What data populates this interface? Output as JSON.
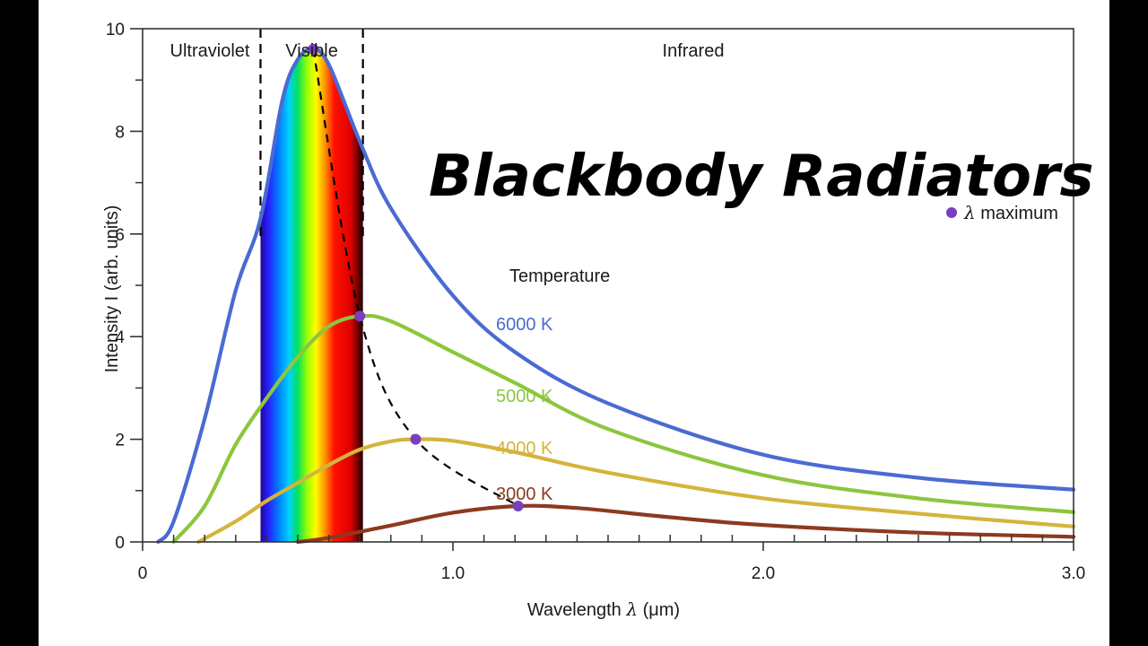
{
  "overlay_title": "Blackbody Radiators",
  "chart_data": {
    "type": "line",
    "xlabel_prefix": "Wavelength ",
    "xlabel_symbol": "λ",
    "xlabel_suffix": " (μm)",
    "ylabel": "Intensity I (arb. units)",
    "xlim": [
      0,
      3.0
    ],
    "ylim": [
      0,
      10
    ],
    "x_ticks": [
      {
        "value": 0,
        "label": "0"
      },
      {
        "value": 1.0,
        "label": "1.0"
      },
      {
        "value": 2.0,
        "label": "2.0"
      },
      {
        "value": 3.0,
        "label": "3.0"
      }
    ],
    "y_ticks": [
      {
        "value": 0,
        "label": "0"
      },
      {
        "value": 2,
        "label": "2"
      },
      {
        "value": 4,
        "label": "4"
      },
      {
        "value": 6,
        "label": "6"
      },
      {
        "value": 8,
        "label": "8"
      },
      {
        "value": 10,
        "label": "10"
      }
    ],
    "x_minor_step": 0.1,
    "y_minor_step": 1,
    "grid": false,
    "regions": [
      {
        "name": "Ultraviolet",
        "from": 0,
        "to": 0.38
      },
      {
        "name": "Visible",
        "from": 0.38,
        "to": 0.71
      },
      {
        "name": "Infrared",
        "from": 0.71,
        "to": 3.0
      }
    ],
    "region_boundaries": [
      0.38,
      0.71
    ],
    "legend_title": "Temperature",
    "marker_legend_symbol": "λ",
    "marker_legend_text": " maximum",
    "series": [
      {
        "name": "6000 K",
        "temperature": 6000,
        "color": "#4a6bd1",
        "peak": {
          "x": 0.55,
          "y": 9.6
        },
        "x": [
          0.05,
          0.1,
          0.2,
          0.3,
          0.38,
          0.45,
          0.5,
          0.55,
          0.6,
          0.7,
          0.8,
          1.0,
          1.2,
          1.5,
          2.0,
          2.5,
          3.0
        ],
        "y": [
          0.0,
          0.4,
          2.4,
          4.9,
          6.3,
          8.6,
          9.4,
          9.6,
          9.3,
          7.8,
          6.5,
          4.8,
          3.7,
          2.7,
          1.7,
          1.25,
          1.02
        ]
      },
      {
        "name": "5000 K",
        "temperature": 5000,
        "color": "#8cc63f",
        "peak": {
          "x": 0.7,
          "y": 4.4
        },
        "x": [
          0.1,
          0.2,
          0.3,
          0.4,
          0.5,
          0.6,
          0.7,
          0.8,
          1.0,
          1.2,
          1.5,
          2.0,
          2.5,
          3.0
        ],
        "y": [
          0.0,
          0.7,
          1.9,
          2.8,
          3.6,
          4.2,
          4.4,
          4.3,
          3.7,
          3.1,
          2.2,
          1.3,
          0.85,
          0.58
        ]
      },
      {
        "name": "4000 K",
        "temperature": 4000,
        "color": "#d4b43c",
        "peak": {
          "x": 0.88,
          "y": 2.0
        },
        "x": [
          0.18,
          0.3,
          0.4,
          0.5,
          0.6,
          0.7,
          0.8,
          0.88,
          1.0,
          1.2,
          1.5,
          2.0,
          2.5,
          3.0
        ],
        "y": [
          0.0,
          0.4,
          0.8,
          1.15,
          1.5,
          1.8,
          1.96,
          2.0,
          1.97,
          1.75,
          1.35,
          0.85,
          0.55,
          0.3
        ]
      },
      {
        "name": "3000 K",
        "temperature": 3000,
        "color": "#8c3a1e",
        "peak": {
          "x": 1.21,
          "y": 0.7
        },
        "x": [
          0.5,
          0.6,
          0.8,
          1.0,
          1.21,
          1.4,
          1.7,
          2.0,
          2.5,
          3.0
        ],
        "y": [
          0.0,
          0.08,
          0.32,
          0.57,
          0.7,
          0.66,
          0.48,
          0.33,
          0.18,
          0.1
        ]
      }
    ],
    "peak_locus_color": "#000000",
    "marker_color": "#7a3fc0"
  }
}
